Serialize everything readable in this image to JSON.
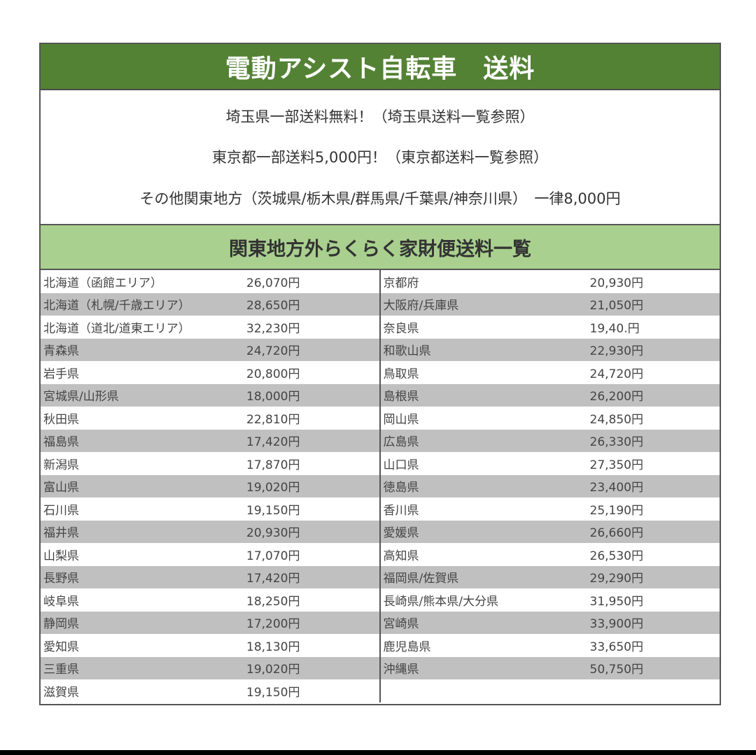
{
  "title": "電動アシスト自転車　送料",
  "info": [
    "埼玉県一部送料無料！（埼玉県送料一覧参照）",
    "東京都一部送料5,000円！（東京都送料一覧参照）",
    "その他関東地方（茨城県/栃木県/群馬県/千葉県/神奈川県）　一律8,000円"
  ],
  "subtitle": "関東地方外らくらく家財便送料一覧",
  "colors": {
    "title_bg": "#548235",
    "subtitle_bg": "#a9d08e",
    "alt_row": "#c0c0c0"
  },
  "table": {
    "left": [
      {
        "name": "北海道（函館エリア）",
        "fee": "26,070円"
      },
      {
        "name": "北海道（札幌/千歳エリア）",
        "fee": "28,650円"
      },
      {
        "name": "北海道（道北/道東エリア）",
        "fee": "32,230円"
      },
      {
        "name": "青森県",
        "fee": "24,720円"
      },
      {
        "name": "岩手県",
        "fee": "20,800円"
      },
      {
        "name": "宮城県/山形県",
        "fee": "18,000円"
      },
      {
        "name": "秋田県",
        "fee": "22,810円"
      },
      {
        "name": "福島県",
        "fee": "17,420円"
      },
      {
        "name": "新潟県",
        "fee": "17,870円"
      },
      {
        "name": "富山県",
        "fee": "19,020円"
      },
      {
        "name": "石川県",
        "fee": "19,150円"
      },
      {
        "name": "福井県",
        "fee": "20,930円"
      },
      {
        "name": "山梨県",
        "fee": "17,070円"
      },
      {
        "name": "長野県",
        "fee": "17,420円"
      },
      {
        "name": "岐阜県",
        "fee": "18,250円"
      },
      {
        "name": "静岡県",
        "fee": "17,200円"
      },
      {
        "name": "愛知県",
        "fee": "18,130円"
      },
      {
        "name": "三重県",
        "fee": "19,020円"
      },
      {
        "name": "滋賀県",
        "fee": "19,150円"
      }
    ],
    "right": [
      {
        "name": "京都府",
        "fee": "20,930円"
      },
      {
        "name": "大阪府/兵庫県",
        "fee": "21,050円"
      },
      {
        "name": "奈良県",
        "fee": "19,40.円"
      },
      {
        "name": "和歌山県",
        "fee": "22,930円"
      },
      {
        "name": "鳥取県",
        "fee": "24,720円"
      },
      {
        "name": "島根県",
        "fee": "26,200円"
      },
      {
        "name": "岡山県",
        "fee": "24,850円"
      },
      {
        "name": "広島県",
        "fee": "26,330円"
      },
      {
        "name": "山口県",
        "fee": "27,350円"
      },
      {
        "name": "徳島県",
        "fee": "23,400円"
      },
      {
        "name": "香川県",
        "fee": "25,190円"
      },
      {
        "name": "愛媛県",
        "fee": "26,660円"
      },
      {
        "name": "高知県",
        "fee": "26,530円"
      },
      {
        "name": "福岡県/佐賀県",
        "fee": "29,290円"
      },
      {
        "name": "長崎県/熊本県/大分県",
        "fee": "31,950円"
      },
      {
        "name": "宮崎県",
        "fee": "33,900円"
      },
      {
        "name": "鹿児島県",
        "fee": "33,650円"
      },
      {
        "name": "沖縄県",
        "fee": "50,750円"
      }
    ]
  }
}
